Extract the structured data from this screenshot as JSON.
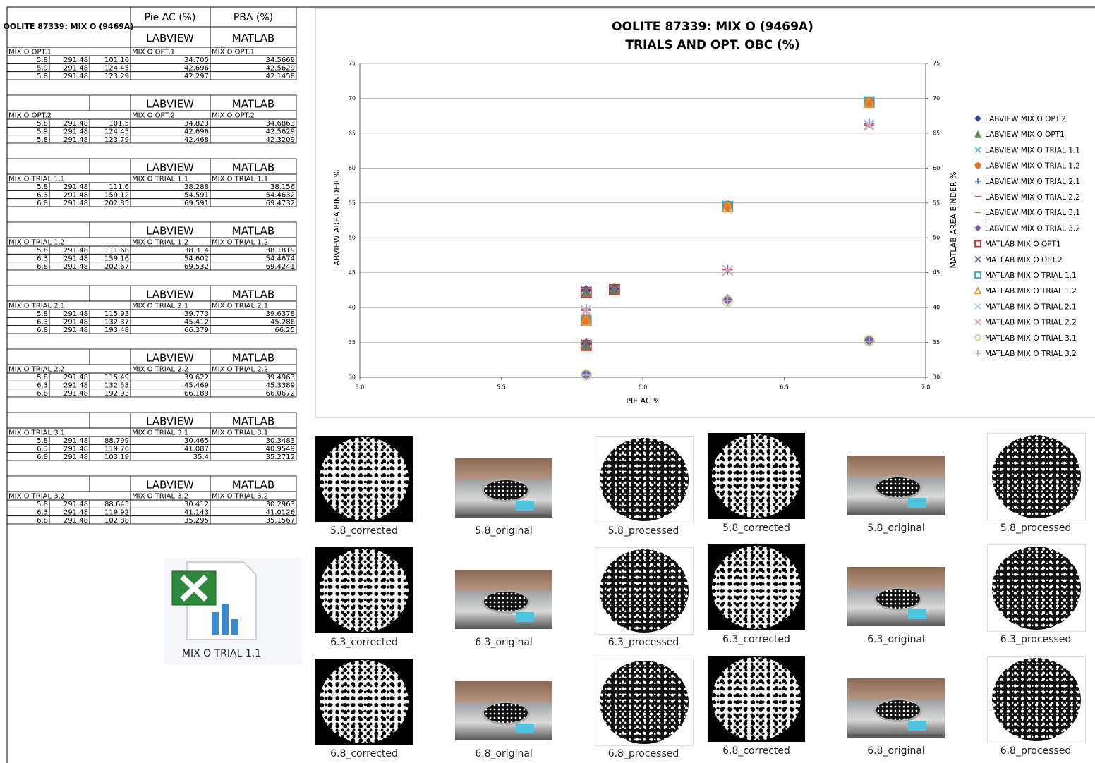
{
  "table": {
    "title": "OOLITE 87339: MIX O (9469A)",
    "col_pie": "Pie AC (%)",
    "col_pba": "PBA (%)",
    "groups": [
      {
        "labview": "LABVIEW",
        "matlab": "MATLAB",
        "name": "MIX O OPT.1",
        "labview_name": "MIX O OPT.1",
        "matlab_name": "MIX O OPT.1",
        "rows": [
          [
            5.8,
            291.48,
            101.16,
            34.705,
            34.5669
          ],
          [
            5.9,
            291.48,
            124.45,
            42.696,
            42.5629
          ],
          [
            5.8,
            291.48,
            123.29,
            42.297,
            42.1458
          ]
        ]
      },
      {
        "labview": "LABVIEW",
        "matlab": "MATLAB",
        "name": "MIX O OPT.2",
        "labview_name": "MIX O OPT.2",
        "matlab_name": "MIX O OPT.2",
        "rows": [
          [
            5.8,
            291.48,
            101.5,
            34.823,
            34.6863
          ],
          [
            5.9,
            291.48,
            124.45,
            42.696,
            42.5629
          ],
          [
            5.8,
            291.48,
            123.79,
            42.468,
            42.3209
          ]
        ]
      },
      {
        "labview": "LABVIEW",
        "matlab": "MATLAB",
        "name": "MIX O TRIAL 1.1",
        "labview_name": "MIX O TRIAL 1.1",
        "matlab_name": "MIX O TRIAL 1.1",
        "rows": [
          [
            5.8,
            291.48,
            111.6,
            38.288,
            38.156
          ],
          [
            6.3,
            291.48,
            159.12,
            54.591,
            54.4632
          ],
          [
            6.8,
            291.48,
            202.85,
            69.591,
            69.4732
          ]
        ]
      },
      {
        "labview": "LABVIEW",
        "matlab": "MATLAB",
        "name": "MIX O TRIAL 1.2",
        "labview_name": "MIX O TRIAL 1.2",
        "matlab_name": "MIX O TRIAL 1.2",
        "rows": [
          [
            5.8,
            291.48,
            111.68,
            38.314,
            38.1819
          ],
          [
            6.3,
            291.48,
            159.16,
            54.602,
            54.4674
          ],
          [
            6.8,
            291.48,
            202.67,
            69.532,
            69.4241
          ]
        ]
      },
      {
        "labview": "LABVIEW",
        "matlab": "MATLAB",
        "name": "MIX O TRIAL 2.1",
        "labview_name": "MIX O TRIAL 2.1",
        "matlab_name": "MIX O TRIAL 2.1",
        "rows": [
          [
            5.8,
            291.48,
            115.93,
            39.773,
            39.6378
          ],
          [
            6.3,
            291.48,
            132.37,
            45.412,
            45.286
          ],
          [
            6.8,
            291.48,
            193.48,
            66.379,
            66.25
          ]
        ]
      },
      {
        "labview": "LABVIEW",
        "matlab": "MATLAB",
        "name": "MIX O TRIAL 2.2",
        "labview_name": "MIX O TRIAL 2.2",
        "matlab_name": "MIX O TRIAL 2.2",
        "rows": [
          [
            5.8,
            291.48,
            115.49,
            39.622,
            39.4963
          ],
          [
            6.3,
            291.48,
            132.53,
            45.469,
            45.3389
          ],
          [
            6.8,
            291.48,
            192.93,
            66.189,
            66.0672
          ]
        ]
      },
      {
        "labview": "LABVIEW",
        "matlab": "MATLAB",
        "name": "MIX O TRIAL 3.1",
        "labview_name": "MIX O TRIAL 3.1",
        "matlab_name": "MIX O TRIAL 3.1",
        "rows": [
          [
            5.8,
            291.48,
            88.799,
            30.465,
            30.3483
          ],
          [
            6.3,
            291.48,
            119.76,
            41.087,
            40.9549
          ],
          [
            6.8,
            291.48,
            103.19,
            35.4,
            35.2712
          ]
        ]
      },
      {
        "labview": "LABVIEW",
        "matlab": "MATLAB",
        "name": "MIX O TRIAL 3.2",
        "labview_name": "MIX O TRIAL 3.2",
        "matlab_name": "MIX O TRIAL 3.2",
        "rows": [
          [
            5.8,
            291.48,
            88.645,
            30.412,
            30.2963
          ],
          [
            6.3,
            291.48,
            119.92,
            41.143,
            41.0126
          ],
          [
            6.8,
            291.48,
            102.88,
            35.295,
            35.1567
          ]
        ]
      }
    ]
  },
  "chart_data": {
    "type": "scatter",
    "title": "OOLITE 87339: MIX O  (9469A)",
    "subtitle": "TRIALS AND OPT. OBC (%)",
    "x_label": "PIE AC %",
    "y_label": "LABVIEW AREA BINDER %",
    "y2_label": "MATLAB AREA BINDER %",
    "xlim": [
      5,
      7
    ],
    "xticks": [
      {
        "value": 5,
        "label": "5.0"
      },
      5.5,
      {
        "value": 6,
        "label": "6.0"
      },
      6.5,
      {
        "value": 7,
        "label": "7.0"
      }
    ],
    "ylim": [
      30,
      75
    ],
    "yticks": [
      30,
      35,
      40,
      45,
      50,
      55,
      60,
      65,
      70,
      75
    ],
    "y2lim": [
      30,
      75
    ],
    "y2ticks": [
      30,
      35,
      40,
      45,
      50,
      55,
      60,
      65,
      70,
      75
    ],
    "grid": true,
    "legend": "right",
    "series": [
      {
        "name": "LABVIEW MIX O OPT.2",
        "color": "#2f4b8a",
        "marker": "diamond",
        "x": [
          5.8,
          5.9,
          5.8
        ],
        "values": [
          34.823,
          42.696,
          42.468
        ]
      },
      {
        "name": "LABVIEW MIX O OPT1",
        "color": "#5f8a3a",
        "marker": "triangle",
        "x": [
          5.8,
          5.9,
          5.8
        ],
        "values": [
          34.705,
          42.696,
          42.297
        ]
      },
      {
        "name": "LABVIEW MIX O TRIAL 1.1",
        "color": "#55b8d8",
        "marker": "x",
        "x": [
          5.8,
          6.3,
          6.8
        ],
        "values": [
          38.288,
          54.591,
          69.591
        ]
      },
      {
        "name": "LABVIEW MIX O TRIAL 1.2",
        "color": "#e0782a",
        "marker": "circle",
        "x": [
          5.8,
          6.3,
          6.8
        ],
        "values": [
          38.314,
          54.602,
          69.532
        ]
      },
      {
        "name": "LABVIEW MIX O TRIAL 2.1",
        "color": "#3c7fd0",
        "marker": "plus",
        "x": [
          5.8,
          6.3,
          6.8
        ],
        "values": [
          39.773,
          45.412,
          66.379
        ]
      },
      {
        "name": "LABVIEW MIX O TRIAL 2.2",
        "color": "#d04848",
        "marker": "dash",
        "x": [
          5.8,
          6.3,
          6.8
        ],
        "values": [
          39.622,
          45.469,
          66.189
        ]
      },
      {
        "name": "LABVIEW MIX O TRIAL 3.1",
        "color": "#6a9a3a",
        "marker": "dash",
        "x": [
          5.8,
          6.3,
          6.8
        ],
        "values": [
          30.465,
          41.087,
          35.4
        ]
      },
      {
        "name": "LABVIEW MIX O TRIAL 3.2",
        "color": "#7a5aa8",
        "marker": "diamond",
        "x": [
          5.8,
          6.3,
          6.8
        ],
        "values": [
          30.412,
          41.143,
          35.295
        ]
      },
      {
        "name": "MATLAB MIX O OPT1",
        "color": "#c83030",
        "marker": "square-open",
        "x": [
          5.8,
          5.9,
          5.8
        ],
        "values": [
          34.5669,
          42.5629,
          42.1458
        ]
      },
      {
        "name": "MATLAB MIX O OPT.2",
        "color": "#7a5aa8",
        "marker": "x",
        "x": [
          5.8,
          5.9,
          5.8
        ],
        "values": [
          34.6863,
          42.5629,
          42.3209
        ]
      },
      {
        "name": "MATLAB MIX O TRIAL 1.1",
        "color": "#30a8c8",
        "marker": "square-open",
        "x": [
          5.8,
          6.3,
          6.8
        ],
        "values": [
          38.156,
          54.4632,
          69.4732
        ]
      },
      {
        "name": "MATLAB MIX O TRIAL 1.2",
        "color": "#f0902a",
        "marker": "triangle-open",
        "x": [
          5.8,
          6.3,
          6.8
        ],
        "values": [
          38.1819,
          54.4674,
          69.4241
        ]
      },
      {
        "name": "MATLAB MIX O TRIAL 2.1",
        "color": "#a8c8e8",
        "marker": "x",
        "x": [
          5.8,
          6.3,
          6.8
        ],
        "values": [
          39.6378,
          45.286,
          66.25
        ]
      },
      {
        "name": "MATLAB MIX O TRIAL 2.2",
        "color": "#e8a0a0",
        "marker": "x",
        "x": [
          5.8,
          6.3,
          6.8
        ],
        "values": [
          39.4963,
          45.3389,
          66.0672
        ]
      },
      {
        "name": "MATLAB MIX O TRIAL 3.1",
        "color": "#c0d890",
        "marker": "circle-open",
        "x": [
          5.8,
          6.3,
          6.8
        ],
        "values": [
          30.3483,
          40.9549,
          35.2712
        ]
      },
      {
        "name": "MATLAB MIX O TRIAL 3.2",
        "color": "#b8a8c8",
        "marker": "plus",
        "x": [
          5.8,
          6.3,
          6.8
        ],
        "values": [
          30.2963,
          41.0126,
          35.1567
        ]
      }
    ]
  },
  "file_icon": {
    "label": "MIX O TRIAL 1.1"
  },
  "thumbnails": [
    "5.8_corrected",
    "5.8_original",
    "5.8_processed",
    "5.8_corrected",
    "5.8_original",
    "5.8_processed",
    "6.3_corrected",
    "6.3_original",
    "6.3_processed",
    "6.3_corrected",
    "6.3_original",
    "6.3_processed",
    "6.8_corrected",
    "6.8_original",
    "6.8_processed",
    "6.8_corrected",
    "6.8_original",
    "6.8_processed"
  ]
}
